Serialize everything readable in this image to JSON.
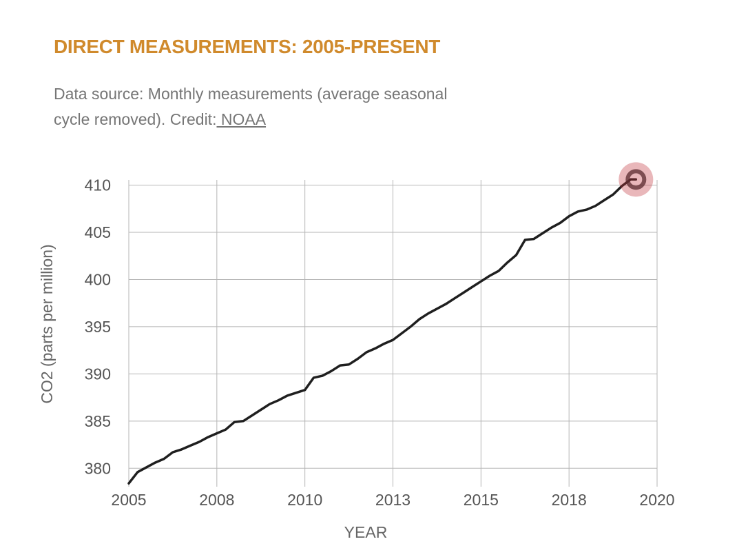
{
  "header": {
    "title": "DIRECT MEASUREMENTS: 2005-PRESENT",
    "subtitle": "Data source: Monthly measurements (average seasonal cycle removed). Credit:",
    "credit_link": " NOAA"
  },
  "chart_data": {
    "type": "line",
    "xlabel": "YEAR",
    "ylabel": "CO2 (parts per million)",
    "ylim": [
      379,
      411.5
    ],
    "xlim": [
      2005,
      2020
    ],
    "x_ticks": [
      2005,
      2007.5,
      2010,
      2012.5,
      2015,
      2017.5,
      2020
    ],
    "x_tick_labels": [
      "2005",
      "2008",
      "2010",
      "2013",
      "2015",
      "2018",
      "2020"
    ],
    "y_ticks": [
      380,
      385,
      390,
      395,
      400,
      405,
      410
    ],
    "y_tick_labels": [
      "380",
      "385",
      "390",
      "395",
      "400",
      "405",
      "410"
    ],
    "grid": true,
    "line_color": "#1f1f1f",
    "highlight_color": "#c0303a",
    "series": [
      {
        "x": [
          2005.0,
          2005.25,
          2005.5,
          2005.75,
          2006.0,
          2006.25,
          2006.5,
          2006.75,
          2007.0,
          2007.25,
          2007.5,
          2007.75,
          2008.0,
          2008.25,
          2008.5,
          2008.75,
          2009.0,
          2009.25,
          2009.5,
          2009.75,
          2010.0,
          2010.25,
          2010.5,
          2010.75,
          2011.0,
          2011.25,
          2011.5,
          2011.75,
          2012.0,
          2012.25,
          2012.5,
          2012.75,
          2013.0,
          2013.25,
          2013.5,
          2013.75,
          2014.0,
          2014.25,
          2014.5,
          2014.75,
          2015.0,
          2015.25,
          2015.5,
          2015.75,
          2016.0,
          2016.25,
          2016.5,
          2016.75,
          2017.0,
          2017.25,
          2017.5,
          2017.75,
          2018.0,
          2018.25,
          2018.5,
          2018.75,
          2019.0,
          2019.25,
          2019.4
        ],
        "values": [
          378.4,
          379.6,
          380.1,
          380.6,
          381.0,
          381.7,
          382.0,
          382.4,
          382.8,
          383.3,
          383.7,
          384.1,
          384.9,
          385.0,
          385.6,
          386.2,
          386.8,
          387.2,
          387.7,
          388.0,
          388.3,
          389.6,
          389.8,
          390.3,
          390.9,
          391.0,
          391.6,
          392.3,
          392.7,
          393.2,
          393.6,
          394.3,
          395.0,
          395.8,
          396.4,
          396.9,
          397.4,
          398.0,
          398.6,
          399.2,
          399.8,
          400.4,
          400.9,
          401.8,
          402.6,
          404.2,
          404.3,
          404.9,
          405.5,
          406.0,
          406.7,
          407.2,
          407.4,
          407.8,
          408.4,
          409.0,
          409.9,
          410.6,
          410.6
        ]
      }
    ],
    "highlight_point": {
      "x": 2019.4,
      "y": 410.6
    }
  }
}
